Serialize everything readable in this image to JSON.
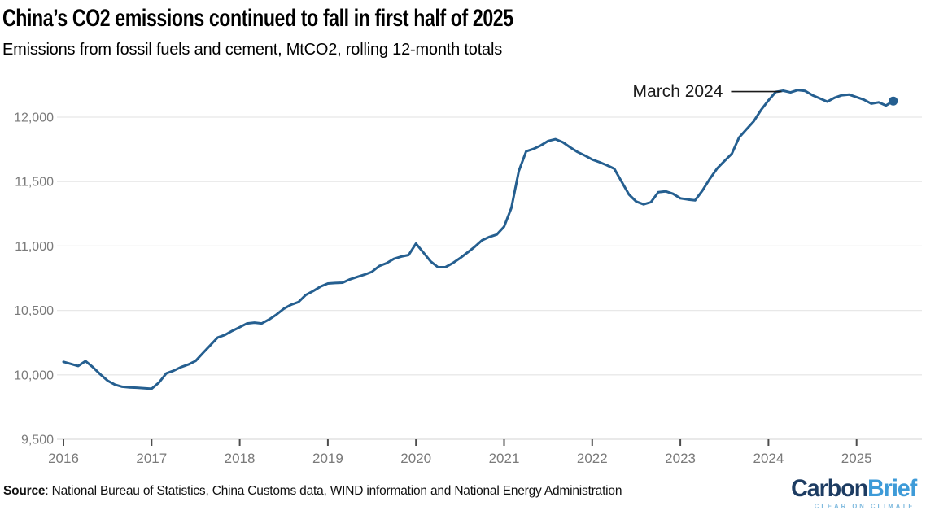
{
  "header": {
    "title": "China’s CO2 emissions continued to fall in first half of 2025",
    "subtitle": "Emissions from fossil fuels and cement, MtCO2, rolling 12-month totals"
  },
  "footer": {
    "source_label": "Source",
    "source_text": ": National Bureau of Statistics, China Customs data, WIND information and National Energy Administration",
    "logo": {
      "part1": "Carbon",
      "part2": "Brief",
      "tagline": "CLEAR ON CLIMATE"
    }
  },
  "colors": {
    "line": "#255f90",
    "end_dot": "#255f90",
    "grid": "#e8e8e8",
    "axis_line": "#dcdcdc",
    "tick_mark": "#4d4d4d",
    "axis_label": "#7a7a7a",
    "annotation": "#1a1a1a",
    "logo_dark": "#1d3c62",
    "logo_light": "#3e9bd8",
    "logo_tagline": "#7db9de"
  },
  "chart_data": {
    "type": "line",
    "title": "China’s CO2 emissions continued to fall in first half of 2025",
    "subtitle": "Emissions from fossil fuels and cement, MtCO2, rolling 12-month totals",
    "ylabel": "MtCO2, rolling 12-month totals",
    "xlabel": "",
    "grid": "horizontal",
    "legend": "none",
    "ylim": [
      9500,
      12250
    ],
    "xlim": [
      2016,
      2025.6
    ],
    "x_ticks": [
      {
        "label": "2016",
        "year": 2016
      },
      {
        "label": "2017",
        "year": 2017
      },
      {
        "label": "2018",
        "year": 2018
      },
      {
        "label": "2019",
        "year": 2019
      },
      {
        "label": "2020",
        "year": 2020
      },
      {
        "label": "2021",
        "year": 2021
      },
      {
        "label": "2022",
        "year": 2022
      },
      {
        "label": "2023",
        "year": 2023
      },
      {
        "label": "2024",
        "year": 2024
      },
      {
        "label": "2025",
        "year": 2025
      }
    ],
    "y_ticks": [
      {
        "label": "9,500",
        "value": 9500
      },
      {
        "label": "10,000",
        "value": 10000
      },
      {
        "label": "10,500",
        "value": 10500
      },
      {
        "label": "11,000",
        "value": 11000
      },
      {
        "label": "11,500",
        "value": 11500
      },
      {
        "label": "12,000",
        "value": 12000
      }
    ],
    "annotation": {
      "label": "March 2024",
      "year": 2024,
      "month": 3,
      "value": 12205
    },
    "end_marker": true,
    "series": [
      {
        "name": "China CO2 emissions from fossil fuels and cement, rolling 12-month total (MtCO2)",
        "start_year": 2016,
        "start_month": 1,
        "monthly_values": [
          10101,
          10085,
          10069,
          10107,
          10060,
          10005,
          9955,
          9924,
          9908,
          9903,
          9900,
          9896,
          9892,
          9940,
          10012,
          10032,
          10060,
          10080,
          10108,
          10170,
          10230,
          10290,
          10310,
          10342,
          10370,
          10399,
          10405,
          10399,
          10430,
          10468,
          10513,
          10544,
          10565,
          10620,
          10650,
          10685,
          10709,
          10713,
          10715,
          10741,
          10760,
          10778,
          10800,
          10845,
          10867,
          10900,
          10918,
          10930,
          11019,
          10950,
          10880,
          10835,
          10836,
          10867,
          10905,
          10949,
          10994,
          11044,
          11070,
          11089,
          11150,
          11297,
          11582,
          11734,
          11753,
          11780,
          11815,
          11829,
          11805,
          11766,
          11730,
          11702,
          11671,
          11650,
          11627,
          11600,
          11500,
          11400,
          11345,
          11323,
          11340,
          11418,
          11424,
          11405,
          11370,
          11361,
          11354,
          11430,
          11520,
          11601,
          11660,
          11715,
          11842,
          11905,
          11968,
          12057,
          12130,
          12196,
          12205,
          12192,
          12210,
          12203,
          12170,
          12145,
          12120,
          12150,
          12170,
          12175,
          12155,
          12135,
          12105,
          12115,
          12090,
          12125
        ]
      }
    ]
  }
}
